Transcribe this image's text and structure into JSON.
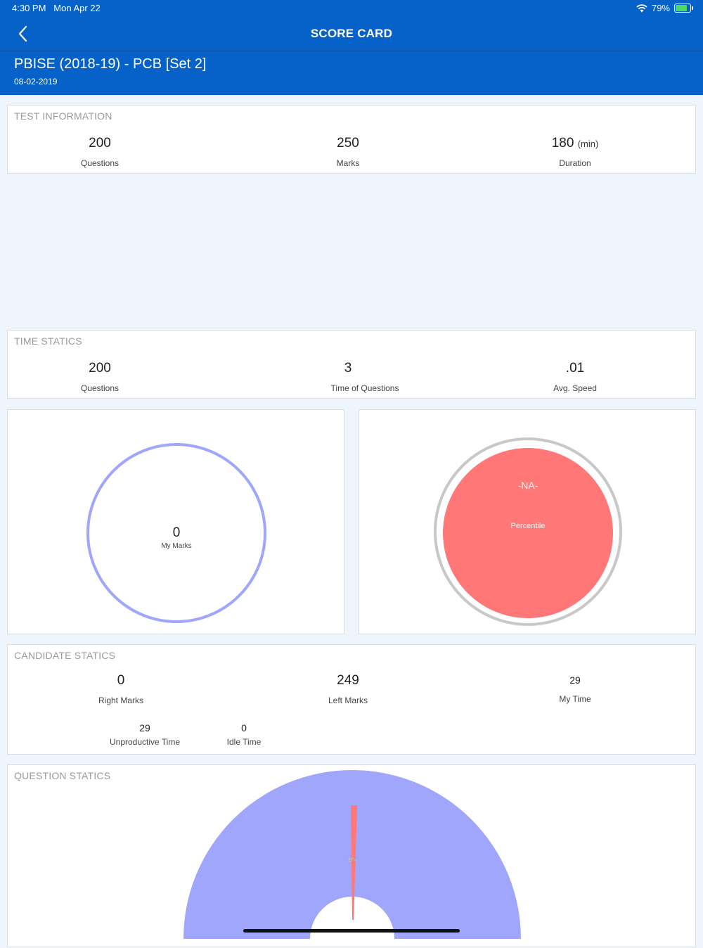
{
  "status_bar": {
    "time": "4:30 PM",
    "date": "Mon Apr 22",
    "battery": "79%",
    "battery_level": 0.79
  },
  "nav": {
    "title": "SCORE CARD",
    "back_icon": "chevron-left-icon"
  },
  "test": {
    "title": "PBISE (2018-19) - PCB [Set 2]",
    "date": "08-02-2019"
  },
  "test_information": {
    "title": "TEST INFORMATION",
    "questions": {
      "value": "200",
      "label": "Questions"
    },
    "marks": {
      "value": "250",
      "label": "Marks"
    },
    "duration": {
      "value": "180",
      "unit": "(min)",
      "label": "Duration"
    }
  },
  "time_statics": {
    "title": "TIME STATICS",
    "questions": {
      "value": "200",
      "label": "Questions"
    },
    "time_of_questions": {
      "value": "3",
      "label": "Time of Questions"
    },
    "avg_speed": {
      "value": ".01",
      "label": "Avg. Speed"
    }
  },
  "my_marks_gauge": {
    "value": "0",
    "label": "My Marks",
    "color": "#a0a6fb"
  },
  "percentile_gauge": {
    "value": "-NA-",
    "label": "Percentile",
    "fill_color": "#ff7777",
    "ring_color": "#c8c8c8"
  },
  "candidate_statics": {
    "title": "CANDIDATE STATICS",
    "right_marks": {
      "value": "0",
      "label": "Right Marks"
    },
    "left_marks": {
      "value": "249",
      "label": "Left Marks"
    },
    "my_time": {
      "value": "29",
      "label": "My Time"
    },
    "unproductive_time": {
      "value": "29",
      "label": "Unproductive Time"
    },
    "idle_time": {
      "value": "0",
      "label": "Idle Time"
    }
  },
  "question_statics": {
    "title": "QUESTION STATICS",
    "slice_label": "0%",
    "colors": {
      "main": "#a0a6fb",
      "highlight": "#ff7777"
    }
  },
  "colors": {
    "header": "#0661c9",
    "background": "#eef5fc"
  }
}
